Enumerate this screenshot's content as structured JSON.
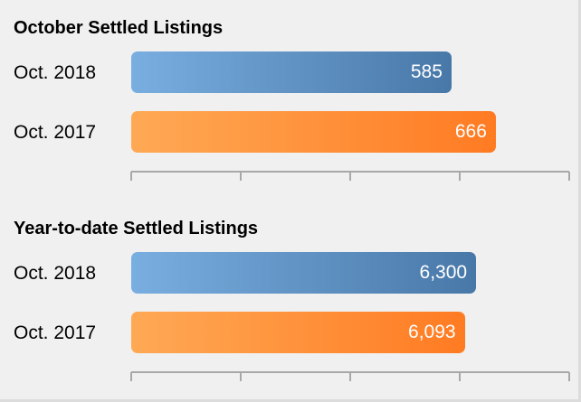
{
  "colors": {
    "series_2018_start": "#79aee0",
    "series_2018_end": "#4878a8",
    "series_2017_start": "#ffa955",
    "series_2017_end": "#ff7b22",
    "axis": "#a8a8a8"
  },
  "chart_data": [
    {
      "type": "bar",
      "orientation": "horizontal",
      "title": "October Settled Listings",
      "categories": [
        "Oct. 2018",
        "Oct. 2017"
      ],
      "values": [
        585,
        666
      ],
      "value_labels": [
        "585",
        "666"
      ],
      "xlim": [
        0,
        800
      ],
      "grid": false,
      "axis_ticks": 5
    },
    {
      "type": "bar",
      "orientation": "horizontal",
      "title": "Year-to-date Settled Listings",
      "categories": [
        "Oct. 2018",
        "Oct. 2017"
      ],
      "values": [
        6300,
        6093
      ],
      "value_labels": [
        "6,300",
        "6,093"
      ],
      "xlim": [
        0,
        8000
      ],
      "grid": false,
      "axis_ticks": 5
    }
  ]
}
